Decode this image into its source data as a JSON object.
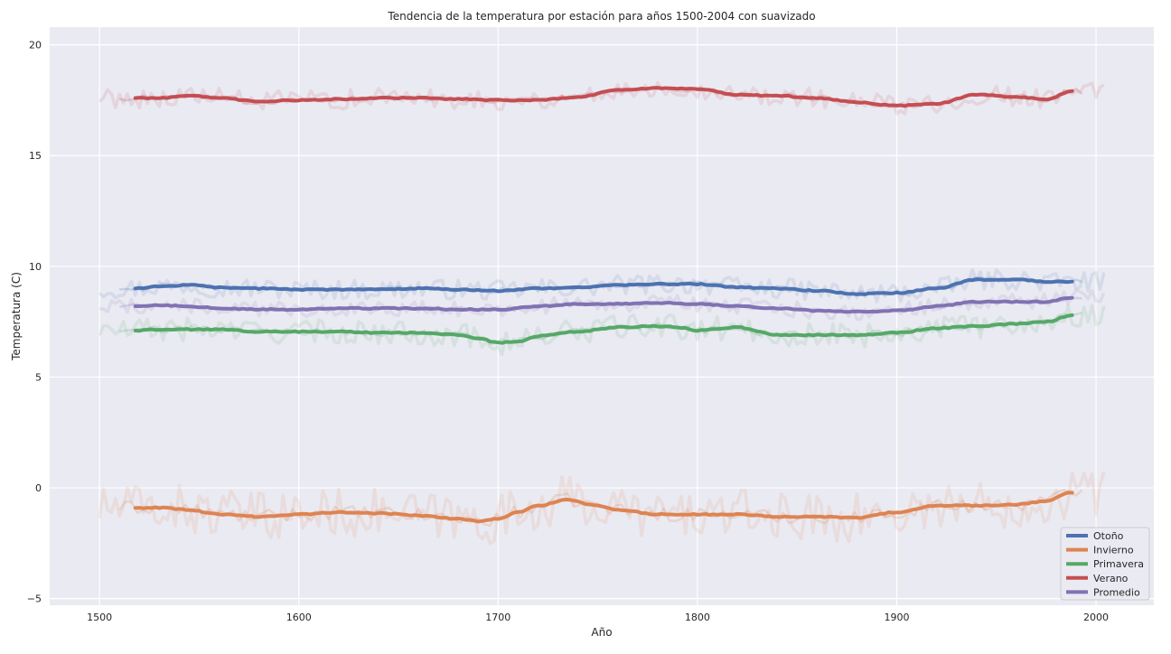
{
  "chart_data": {
    "type": "line",
    "title": "Tendencia de la temperatura por estación para años 1500-2004 con suavizado",
    "xlabel": "Año",
    "ylabel": "Temperatura (C)",
    "xlim": [
      1475,
      2029
    ],
    "ylim": [
      -5.3,
      20.8
    ],
    "xticks": [
      1500,
      1600,
      1700,
      1800,
      1900,
      2000
    ],
    "yticks": [
      -5,
      0,
      5,
      10,
      15,
      20
    ],
    "ytick_labels": [
      "−5",
      "0",
      "5",
      "10",
      "15",
      "20"
    ],
    "grid": true,
    "legend_position": "bottom-right",
    "background": "#eaeaf2",
    "series": [
      {
        "name": "Otoño",
        "color": "#4c72b0",
        "x": [
          1518,
          1530,
          1545,
          1560,
          1580,
          1600,
          1620,
          1640,
          1660,
          1680,
          1700,
          1720,
          1740,
          1760,
          1780,
          1800,
          1820,
          1840,
          1860,
          1880,
          1900,
          1920,
          1940,
          1960,
          1975,
          1988
        ],
        "values": [
          9.0,
          9.1,
          9.15,
          9.05,
          9.0,
          8.95,
          8.95,
          8.95,
          9.0,
          8.95,
          8.9,
          9.0,
          9.05,
          9.15,
          9.2,
          9.2,
          9.05,
          9.0,
          8.9,
          8.75,
          8.8,
          9.0,
          9.4,
          9.4,
          9.3,
          9.3
        ]
      },
      {
        "name": "Invierno",
        "color": "#dd8452",
        "x": [
          1518,
          1530,
          1545,
          1560,
          1580,
          1600,
          1620,
          1640,
          1660,
          1680,
          1690,
          1700,
          1710,
          1720,
          1735,
          1750,
          1760,
          1780,
          1800,
          1820,
          1840,
          1860,
          1880,
          1900,
          1920,
          1940,
          1960,
          1975,
          1988
        ],
        "values": [
          -0.9,
          -0.9,
          -1.0,
          -1.2,
          -1.3,
          -1.2,
          -1.1,
          -1.15,
          -1.25,
          -1.4,
          -1.5,
          -1.4,
          -1.1,
          -0.8,
          -0.55,
          -0.8,
          -1.0,
          -1.2,
          -1.2,
          -1.2,
          -1.3,
          -1.3,
          -1.35,
          -1.1,
          -0.8,
          -0.8,
          -0.75,
          -0.6,
          -0.2
        ]
      },
      {
        "name": "Primavera",
        "color": "#55a868",
        "x": [
          1518,
          1530,
          1545,
          1560,
          1580,
          1600,
          1620,
          1640,
          1660,
          1680,
          1690,
          1700,
          1710,
          1720,
          1740,
          1760,
          1780,
          1790,
          1800,
          1820,
          1840,
          1860,
          1880,
          1900,
          1920,
          1940,
          1960,
          1975,
          1988
        ],
        "values": [
          7.1,
          7.15,
          7.15,
          7.15,
          7.05,
          7.05,
          7.05,
          7.0,
          7.0,
          6.9,
          6.75,
          6.55,
          6.6,
          6.85,
          7.05,
          7.25,
          7.3,
          7.25,
          7.1,
          7.25,
          6.9,
          6.9,
          6.9,
          7.0,
          7.2,
          7.3,
          7.4,
          7.5,
          7.8
        ]
      },
      {
        "name": "Verano",
        "color": "#c44e52",
        "x": [
          1518,
          1530,
          1545,
          1560,
          1580,
          1600,
          1620,
          1640,
          1660,
          1680,
          1700,
          1720,
          1740,
          1760,
          1780,
          1800,
          1820,
          1840,
          1860,
          1880,
          1900,
          1920,
          1940,
          1960,
          1975,
          1988
        ],
        "values": [
          17.6,
          17.6,
          17.7,
          17.6,
          17.45,
          17.5,
          17.55,
          17.6,
          17.6,
          17.55,
          17.5,
          17.5,
          17.65,
          17.95,
          18.05,
          18.0,
          17.75,
          17.7,
          17.6,
          17.4,
          17.25,
          17.35,
          17.75,
          17.65,
          17.55,
          17.9
        ]
      },
      {
        "name": "Promedio",
        "color": "#8172b3",
        "x": [
          1518,
          1530,
          1545,
          1560,
          1580,
          1600,
          1620,
          1640,
          1660,
          1680,
          1700,
          1720,
          1740,
          1760,
          1780,
          1800,
          1820,
          1840,
          1860,
          1880,
          1900,
          1920,
          1940,
          1960,
          1975,
          1988
        ],
        "values": [
          8.2,
          8.25,
          8.2,
          8.1,
          8.05,
          8.05,
          8.1,
          8.1,
          8.1,
          8.05,
          8.05,
          8.2,
          8.3,
          8.3,
          8.35,
          8.3,
          8.2,
          8.1,
          8.0,
          7.95,
          8.0,
          8.2,
          8.4,
          8.4,
          8.4,
          8.6
        ]
      }
    ]
  }
}
